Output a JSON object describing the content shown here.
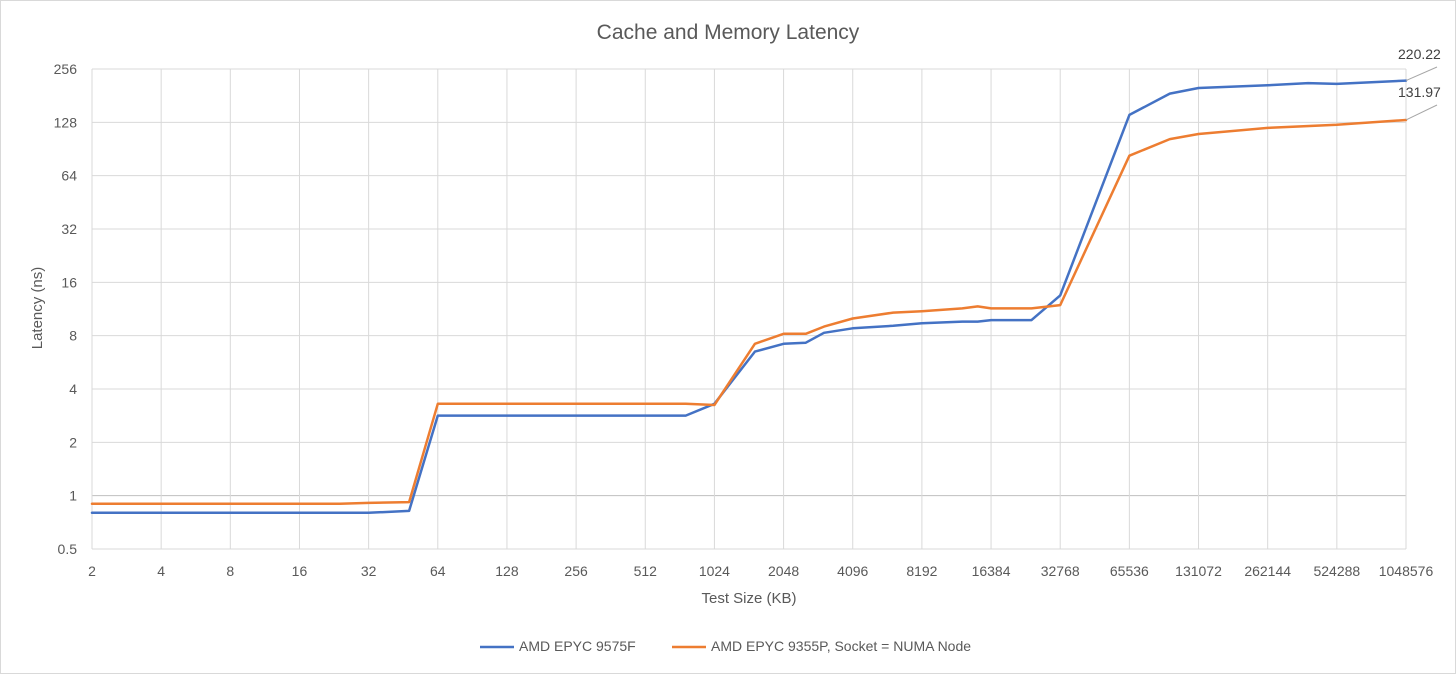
{
  "chart_data": {
    "type": "line",
    "title": "Cache and Memory Latency",
    "xlabel": "Test Size (KB)",
    "ylabel": "Latency (ns)",
    "y_scale": "log2",
    "x_scale": "log2",
    "ylim": [
      0.5,
      256
    ],
    "xlim": [
      2,
      1048576
    ],
    "x_ticks": [
      "2",
      "4",
      "8",
      "16",
      "32",
      "64",
      "128",
      "256",
      "512",
      "1024",
      "2048",
      "4096",
      "8192",
      "16384",
      "32768",
      "65536",
      "131072",
      "262144",
      "524288",
      "1048576"
    ],
    "y_ticks": [
      "0.5",
      "1",
      "2",
      "4",
      "8",
      "16",
      "32",
      "64",
      "128",
      "256"
    ],
    "grid": true,
    "legend_position": "bottom",
    "colors": {
      "series_1": "#4472c4",
      "series_2": "#ed7d31",
      "grid": "#d9d9d9",
      "baseline": "#bfbfbf"
    },
    "series": [
      {
        "name": "AMD EPYC 9575F",
        "x": [
          2,
          32,
          48,
          64,
          768,
          1024,
          1536,
          2048,
          2560,
          3072,
          4096,
          6144,
          8192,
          12288,
          14336,
          16384,
          24576,
          32768,
          65536,
          98304,
          131072,
          262144,
          393216,
          524288,
          1048576
        ],
        "y": [
          0.8,
          0.8,
          0.82,
          2.83,
          2.83,
          3.3,
          6.5,
          7.2,
          7.3,
          8.3,
          8.8,
          9.1,
          9.4,
          9.6,
          9.6,
          9.8,
          9.8,
          13.5,
          141,
          186,
          200,
          207,
          213,
          211,
          220.22
        ]
      },
      {
        "name": "AMD EPYC 9355P, Socket = NUMA Node",
        "x": [
          2,
          24,
          32,
          48,
          64,
          768,
          1024,
          1536,
          2048,
          2560,
          3072,
          4096,
          6144,
          8192,
          12288,
          14336,
          16384,
          24576,
          32768,
          65536,
          98304,
          131072,
          262144,
          524288,
          1048576
        ],
        "y": [
          0.9,
          0.9,
          0.91,
          0.92,
          3.3,
          3.3,
          3.25,
          7.2,
          8.2,
          8.2,
          9.0,
          10.0,
          10.8,
          11.0,
          11.4,
          11.7,
          11.4,
          11.4,
          11.9,
          83,
          103,
          110,
          119,
          124,
          131.97
        ]
      }
    ],
    "annotations": [
      {
        "series": "AMD EPYC 9575F",
        "x": 1048576,
        "label": "220.22"
      },
      {
        "series": "AMD EPYC 9355P, Socket = NUMA Node",
        "x": 1048576,
        "label": "131.97"
      }
    ]
  }
}
